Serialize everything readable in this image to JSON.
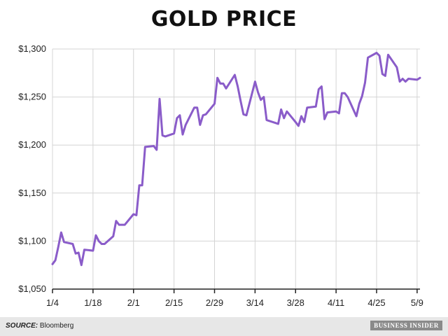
{
  "chart_data": {
    "type": "line",
    "title": "GOLD PRICE",
    "xlabel": "",
    "ylabel": "",
    "ylim": [
      1050,
      1300
    ],
    "xlim": [
      "2016-01-04",
      "2016-05-10"
    ],
    "y_ticks": [
      1050,
      1100,
      1150,
      1200,
      1250,
      1300
    ],
    "y_tick_labels": [
      "$1,050",
      "$1,100",
      "$1,150",
      "$1,200",
      "$1,250",
      "$1,300"
    ],
    "x_ticks": [
      "2016-01-04",
      "2016-01-18",
      "2016-02-01",
      "2016-02-15",
      "2016-02-29",
      "2016-03-14",
      "2016-03-28",
      "2016-04-11",
      "2016-04-25",
      "2016-05-09"
    ],
    "x_tick_labels": [
      "1/4",
      "1/18",
      "2/1",
      "2/15",
      "2/29",
      "3/14",
      "3/28",
      "4/11",
      "4/25",
      "5/9"
    ],
    "grid": "vertical and horizontal",
    "line_color": "#8a5cc9",
    "series": [
      {
        "x": [
          "2016-01-04",
          "2016-01-05",
          "2016-01-06",
          "2016-01-07",
          "2016-01-08",
          "2016-01-11",
          "2016-01-12",
          "2016-01-13",
          "2016-01-14",
          "2016-01-15",
          "2016-01-18",
          "2016-01-19",
          "2016-01-20",
          "2016-01-21",
          "2016-01-22",
          "2016-01-25",
          "2016-01-26",
          "2016-01-27",
          "2016-01-28",
          "2016-01-29",
          "2016-02-01",
          "2016-02-02",
          "2016-02-03",
          "2016-02-04",
          "2016-02-05",
          "2016-02-08",
          "2016-02-09",
          "2016-02-10",
          "2016-02-11",
          "2016-02-12",
          "2016-02-15",
          "2016-02-16",
          "2016-02-17",
          "2016-02-18",
          "2016-02-19",
          "2016-02-22",
          "2016-02-23",
          "2016-02-24",
          "2016-02-25",
          "2016-02-26",
          "2016-02-29",
          "2016-03-01",
          "2016-03-02",
          "2016-03-03",
          "2016-03-04",
          "2016-03-07",
          "2016-03-08",
          "2016-03-09",
          "2016-03-10",
          "2016-03-11",
          "2016-03-14",
          "2016-03-15",
          "2016-03-16",
          "2016-03-17",
          "2016-03-18",
          "2016-03-21",
          "2016-03-22",
          "2016-03-23",
          "2016-03-24",
          "2016-03-25",
          "2016-03-28",
          "2016-03-29",
          "2016-03-30",
          "2016-03-31",
          "2016-04-01",
          "2016-04-04",
          "2016-04-05",
          "2016-04-06",
          "2016-04-07",
          "2016-04-08",
          "2016-04-11",
          "2016-04-12",
          "2016-04-13",
          "2016-04-14",
          "2016-04-15",
          "2016-04-18",
          "2016-04-19",
          "2016-04-20",
          "2016-04-21",
          "2016-04-22",
          "2016-04-25",
          "2016-04-26",
          "2016-04-27",
          "2016-04-28",
          "2016-04-29",
          "2016-05-02",
          "2016-05-03",
          "2016-05-04",
          "2016-05-05",
          "2016-05-06",
          "2016-05-09",
          "2016-05-10"
        ],
        "values": [
          1076,
          1080,
          1094,
          1109,
          1099,
          1097,
          1087,
          1088,
          1075,
          1091,
          1090,
          1106,
          1100,
          1097,
          1097,
          1105,
          1121,
          1117,
          1117,
          1117,
          1128,
          1127,
          1158,
          1158,
          1198,
          1199,
          1195,
          1248,
          1210,
          1209,
          1212,
          1228,
          1231,
          1211,
          1221,
          1239,
          1239,
          1221,
          1231,
          1232,
          1243,
          1270,
          1264,
          1264,
          1259,
          1273,
          1261,
          1246,
          1232,
          1231,
          1266,
          1255,
          1247,
          1250,
          1226,
          1223,
          1222,
          1237,
          1228,
          1235,
          1224,
          1220,
          1230,
          1224,
          1239,
          1240,
          1258,
          1261,
          1227,
          1234,
          1235,
          1233,
          1254,
          1254,
          1250,
          1230,
          1243,
          1251,
          1265,
          1291,
          1296,
          1293,
          1274,
          1272,
          1294,
          1281,
          1266,
          1269,
          1266,
          1269,
          1268,
          1270
        ]
      }
    ]
  },
  "footer": {
    "source_label": "SOURCE:",
    "source_value": "Bloomberg",
    "brand": "BUSINESS INSIDER"
  }
}
